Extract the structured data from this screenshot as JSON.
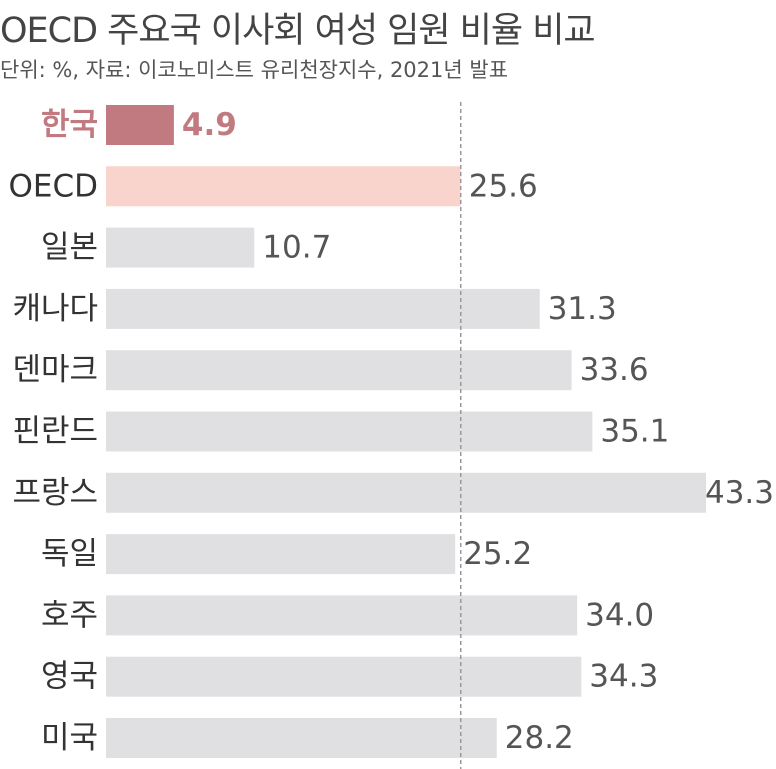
{
  "title": "OECD 주요국 이사회 여성 임원 비율 비교",
  "subtitle": "단위: %, 자료: 이코노미스트 유리천장지수, 2021년 발표",
  "colors": {
    "highlight": "#c27a81",
    "oecd": "#f9d4cc",
    "default": "#e0e0e2",
    "reference_line": "#999999"
  },
  "chart_data": {
    "type": "bar",
    "orientation": "horizontal",
    "title": "OECD 주요국 이사회 여성 임원 비율 비교",
    "subtitle": "단위: %, 자료: 이코노미스트 유리천장지수, 2021년 발표",
    "categories": [
      "한국",
      "OECD",
      "일본",
      "캐나다",
      "덴마크",
      "핀란드",
      "프랑스",
      "독일",
      "호주",
      "영국",
      "미국"
    ],
    "values": [
      4.9,
      25.6,
      10.7,
      31.3,
      33.6,
      35.1,
      43.3,
      25.2,
      34.0,
      34.3,
      28.2
    ],
    "value_labels": [
      "4.9",
      "25.6",
      "10.7",
      "31.3",
      "33.6",
      "35.1",
      "43.3",
      "25.2",
      "34.0",
      "34.3",
      "28.2"
    ],
    "highlight_category": "한국",
    "reference_category": "OECD",
    "reference_line": 25.6,
    "xlim": [
      0,
      43.3
    ],
    "grid": false,
    "legend": "none"
  }
}
